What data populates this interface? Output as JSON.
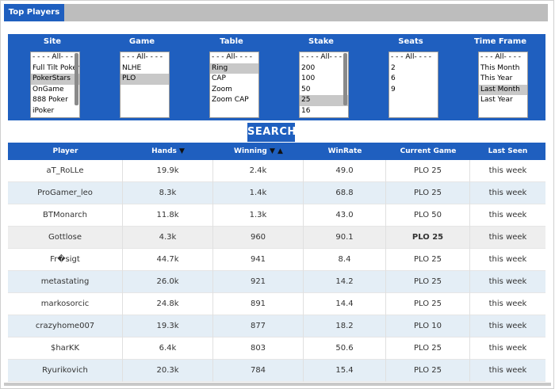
{
  "tab": {
    "label": "Top Players"
  },
  "filters": [
    {
      "label": "Site",
      "options": [
        "- - - - All- - - -",
        "Full Tilt Poker",
        "PokerStars",
        "OnGame",
        "888 Poker",
        "iPoker"
      ],
      "selected": 2,
      "scroll": true
    },
    {
      "label": "Game",
      "options": [
        "- - - All- - - -",
        "NLHE",
        "PLO"
      ],
      "selected": 2,
      "scroll": false
    },
    {
      "label": "Table",
      "options": [
        "- - - All- - - -",
        "Ring",
        "CAP",
        "Zoom",
        "Zoom CAP"
      ],
      "selected": 1,
      "scroll": false
    },
    {
      "label": "Stake",
      "options": [
        "- - - - All- - - -",
        "200",
        "100",
        "50",
        "25",
        "16"
      ],
      "selected": 4,
      "scroll": true
    },
    {
      "label": "Seats",
      "options": [
        "- - - All- - - -",
        "2",
        "6",
        "9"
      ],
      "selected": -1,
      "scroll": false
    },
    {
      "label": "Time Frame",
      "options": [
        "- - - All- - - -",
        "This Month",
        "This Year",
        "Last Month",
        "Last Year"
      ],
      "selected": 3,
      "scroll": false
    }
  ],
  "search": {
    "label": "SEARCH"
  },
  "table": {
    "headers": {
      "player": "Player",
      "hands": "Hands",
      "winning": "Winning",
      "winrate": "WinRate",
      "game": "Current Game",
      "seen": "Last Seen"
    },
    "rows": [
      {
        "player": "aT_RoLLe",
        "hands": "19.9k",
        "winning": "2.4k",
        "winrate": "49.0",
        "game": "PLO 25",
        "seen": "this week"
      },
      {
        "player": "ProGamer_leo",
        "hands": "8.3k",
        "winning": "1.4k",
        "winrate": "68.8",
        "game": "PLO 25",
        "seen": "this week"
      },
      {
        "player": "BTMonarch",
        "hands": "11.8k",
        "winning": "1.3k",
        "winrate": "43.0",
        "game": "PLO 50",
        "seen": "this week"
      },
      {
        "player": "Gottlose",
        "hands": "4.3k",
        "winning": "960",
        "winrate": "90.1",
        "game": "PLO 25",
        "seen": "this week"
      },
      {
        "player": "Fr�sigt",
        "hands": "44.7k",
        "winning": "941",
        "winrate": "8.4",
        "game": "PLO 25",
        "seen": "this week"
      },
      {
        "player": "metastating",
        "hands": "26.0k",
        "winning": "921",
        "winrate": "14.2",
        "game": "PLO 25",
        "seen": "this week"
      },
      {
        "player": "markosorcic",
        "hands": "24.8k",
        "winning": "891",
        "winrate": "14.4",
        "game": "PLO 25",
        "seen": "this week"
      },
      {
        "player": "crazyhome007",
        "hands": "19.3k",
        "winning": "877",
        "winrate": "18.2",
        "game": "PLO 10",
        "seen": "this week"
      },
      {
        "player": "$harKK",
        "hands": "6.4k",
        "winning": "803",
        "winrate": "50.6",
        "game": "PLO 25",
        "seen": "this week"
      },
      {
        "player": "Ryurikovich",
        "hands": "20.3k",
        "winning": "784",
        "winrate": "15.4",
        "game": "PLO 25",
        "seen": "this week"
      }
    ]
  }
}
